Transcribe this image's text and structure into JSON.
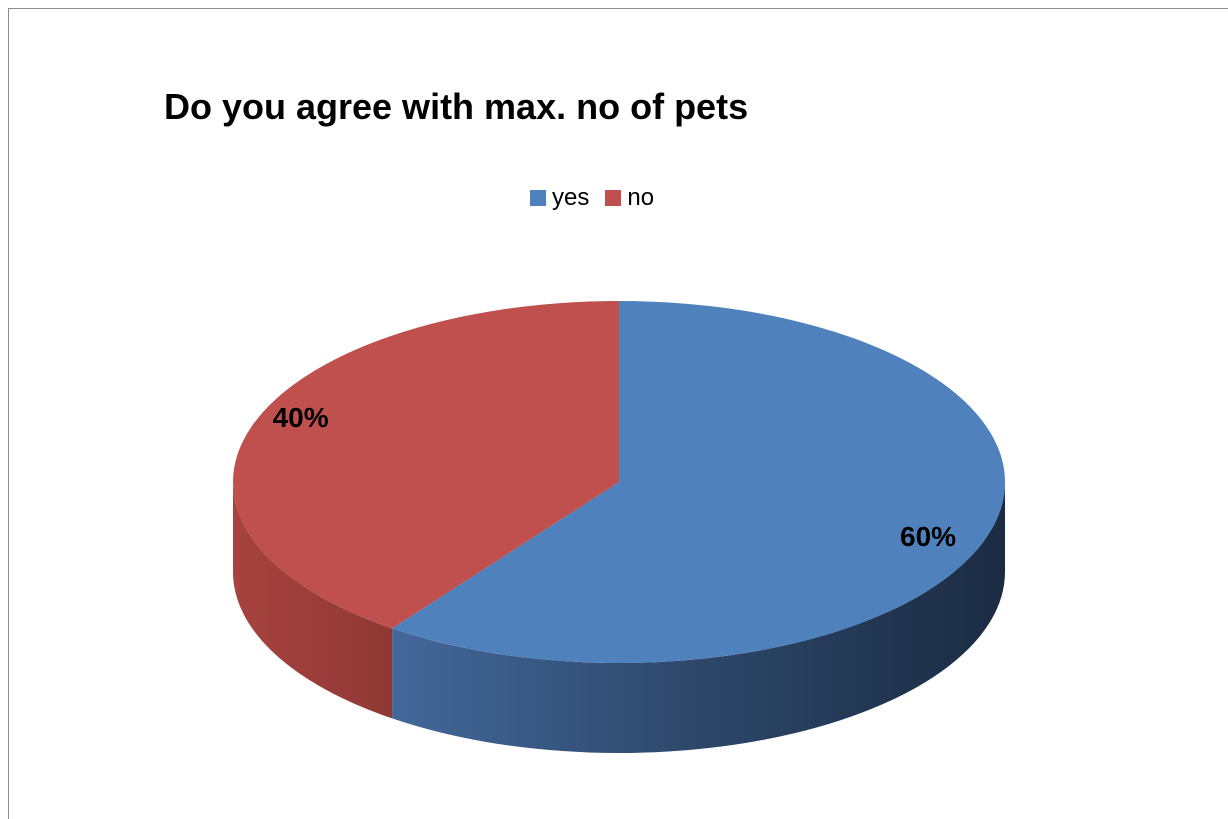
{
  "chart_data": {
    "type": "pie",
    "title": "Do you agree with max. no of pets",
    "categories": [
      "yes",
      "no"
    ],
    "values": [
      60,
      40
    ],
    "labels": [
      "60%",
      "40%"
    ],
    "colors": [
      "#4f81bd",
      "#c0504d"
    ],
    "legend_position": "top",
    "style": "3d"
  }
}
